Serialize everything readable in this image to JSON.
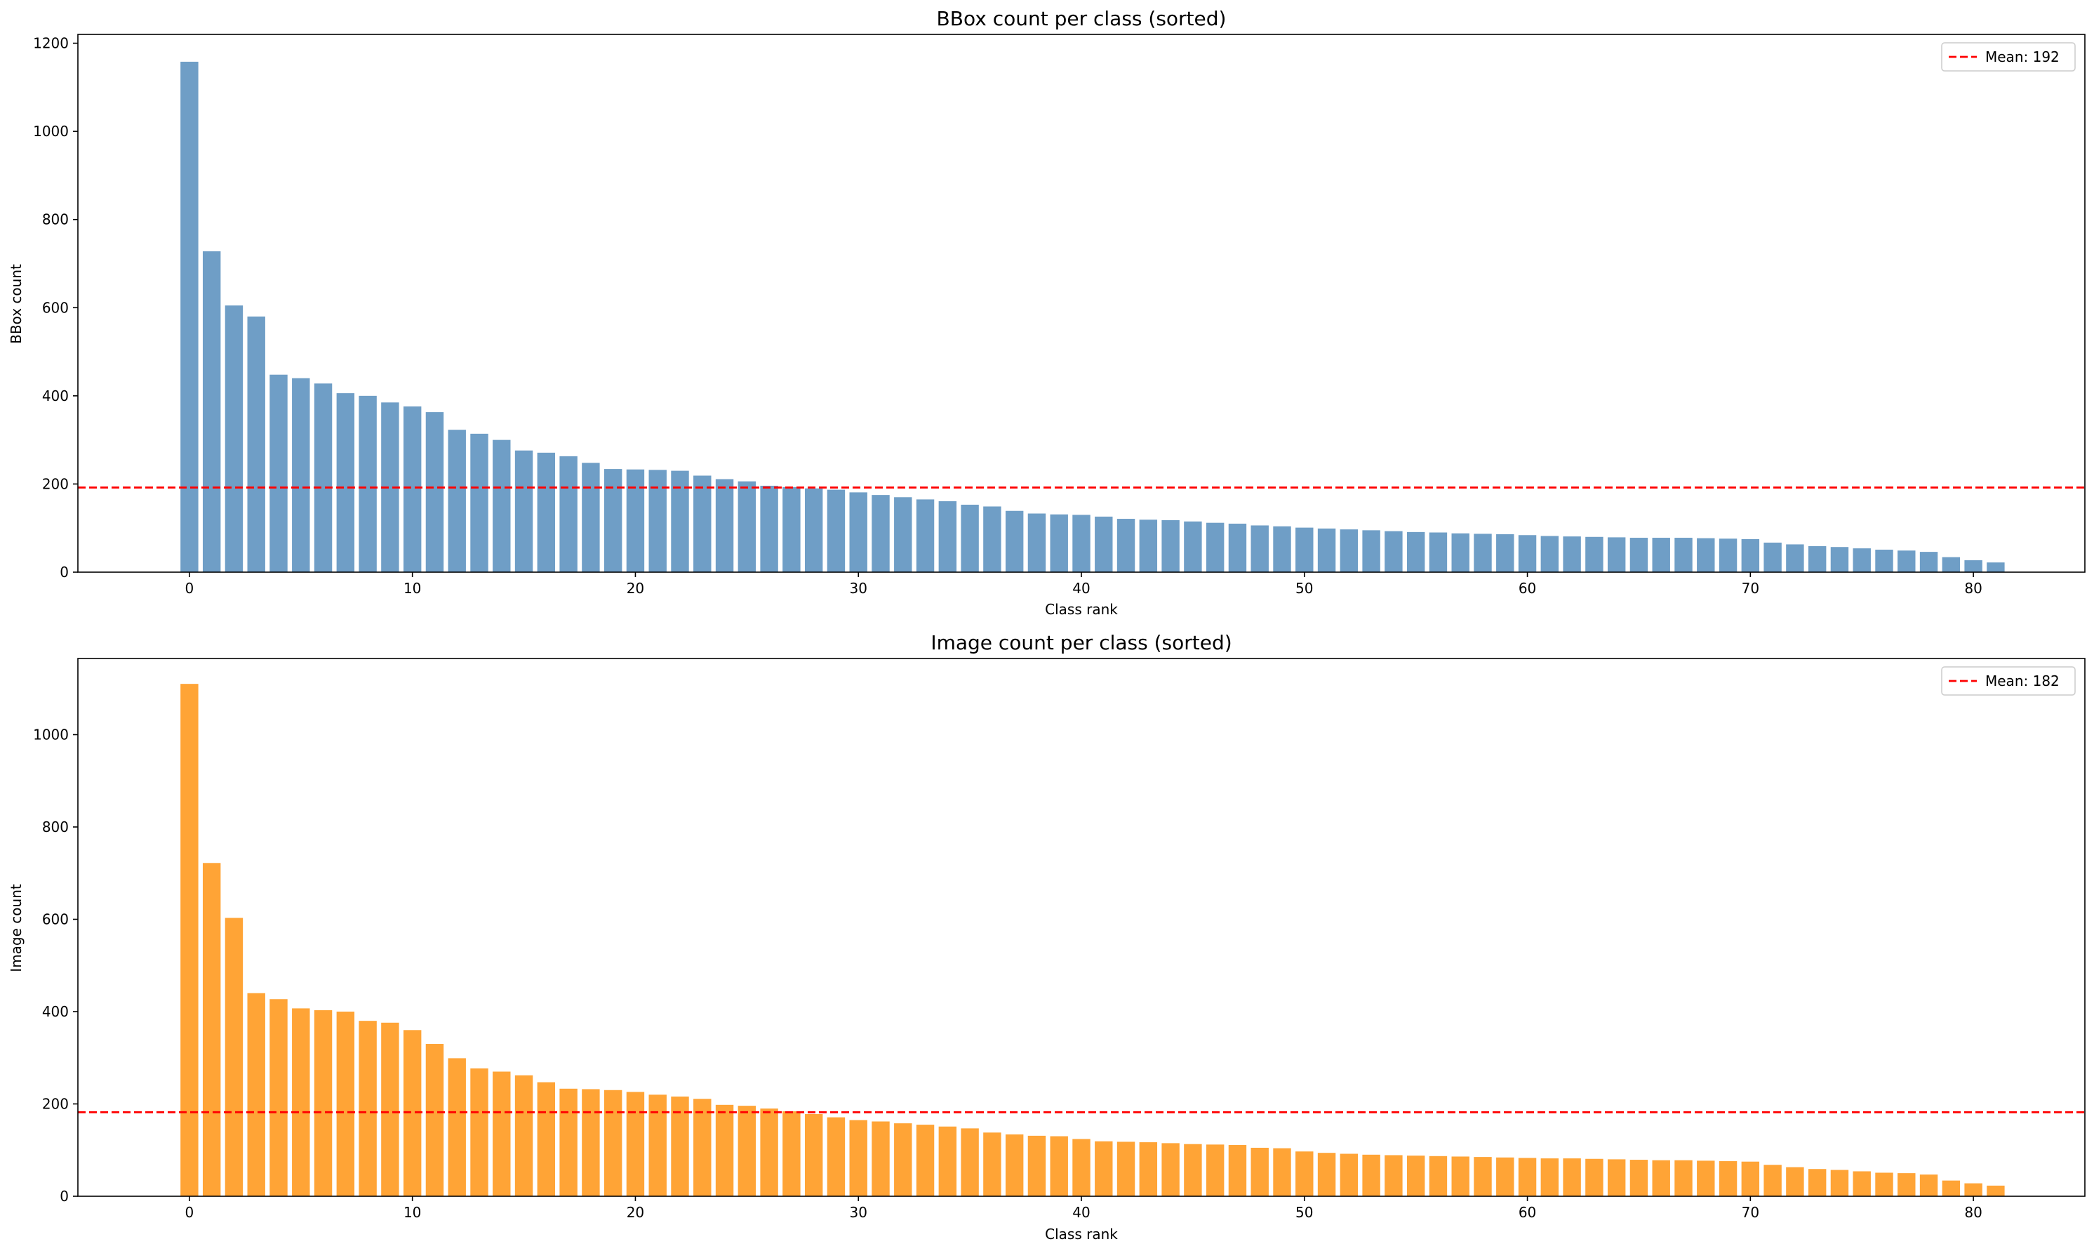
{
  "chart_data": [
    {
      "type": "bar",
      "title": "BBox count per class (sorted)",
      "xlabel": "Class rank",
      "ylabel": "BBox count",
      "xlim": [
        -5,
        85
      ],
      "ylim": [
        0,
        1220
      ],
      "xticks": [
        0,
        10,
        20,
        30,
        40,
        50,
        60,
        70,
        80
      ],
      "yticks": [
        0,
        200,
        400,
        600,
        800,
        1000,
        1200
      ],
      "bar_color": "#6f9ec6",
      "mean": 192,
      "mean_color": "#ff0000",
      "legend_label": "Mean: 192",
      "legend_position": "upper right",
      "values": [
        1158,
        728,
        605,
        580,
        448,
        440,
        428,
        406,
        400,
        385,
        376,
        363,
        323,
        314,
        300,
        276,
        271,
        263,
        248,
        234,
        233,
        232,
        230,
        219,
        211,
        206,
        196,
        193,
        190,
        187,
        181,
        175,
        170,
        165,
        161,
        153,
        149,
        139,
        133,
        131,
        130,
        126,
        121,
        119,
        118,
        115,
        112,
        110,
        106,
        104,
        101,
        99,
        97,
        95,
        93,
        91,
        90,
        88,
        87,
        86,
        84,
        82,
        81,
        80,
        79,
        78,
        78,
        78,
        77,
        76,
        75,
        67,
        63,
        59,
        57,
        54,
        51,
        49,
        46,
        34,
        27,
        22
      ]
    },
    {
      "type": "bar",
      "title": "Image count per class (sorted)",
      "xlabel": "Class rank",
      "ylabel": "Image count",
      "xlim": [
        -5,
        85
      ],
      "ylim": [
        0,
        1165
      ],
      "xticks": [
        0,
        10,
        20,
        30,
        40,
        50,
        60,
        70,
        80
      ],
      "yticks": [
        0,
        200,
        400,
        600,
        800,
        1000
      ],
      "bar_color": "#ffa436",
      "mean": 182,
      "mean_color": "#ff0000",
      "legend_label": "Mean: 182",
      "legend_position": "upper right",
      "values": [
        1110,
        722,
        603,
        440,
        427,
        407,
        403,
        400,
        380,
        376,
        360,
        330,
        299,
        277,
        270,
        262,
        247,
        233,
        232,
        230,
        226,
        220,
        216,
        211,
        198,
        196,
        190,
        184,
        178,
        171,
        165,
        162,
        158,
        155,
        151,
        147,
        138,
        134,
        131,
        130,
        124,
        119,
        118,
        117,
        115,
        113,
        112,
        111,
        105,
        104,
        97,
        94,
        92,
        90,
        89,
        88,
        87,
        86,
        85,
        84,
        83,
        82,
        82,
        81,
        80,
        79,
        78,
        78,
        77,
        76,
        75,
        68,
        63,
        59,
        57,
        54,
        51,
        50,
        47,
        34,
        28,
        23
      ]
    }
  ]
}
